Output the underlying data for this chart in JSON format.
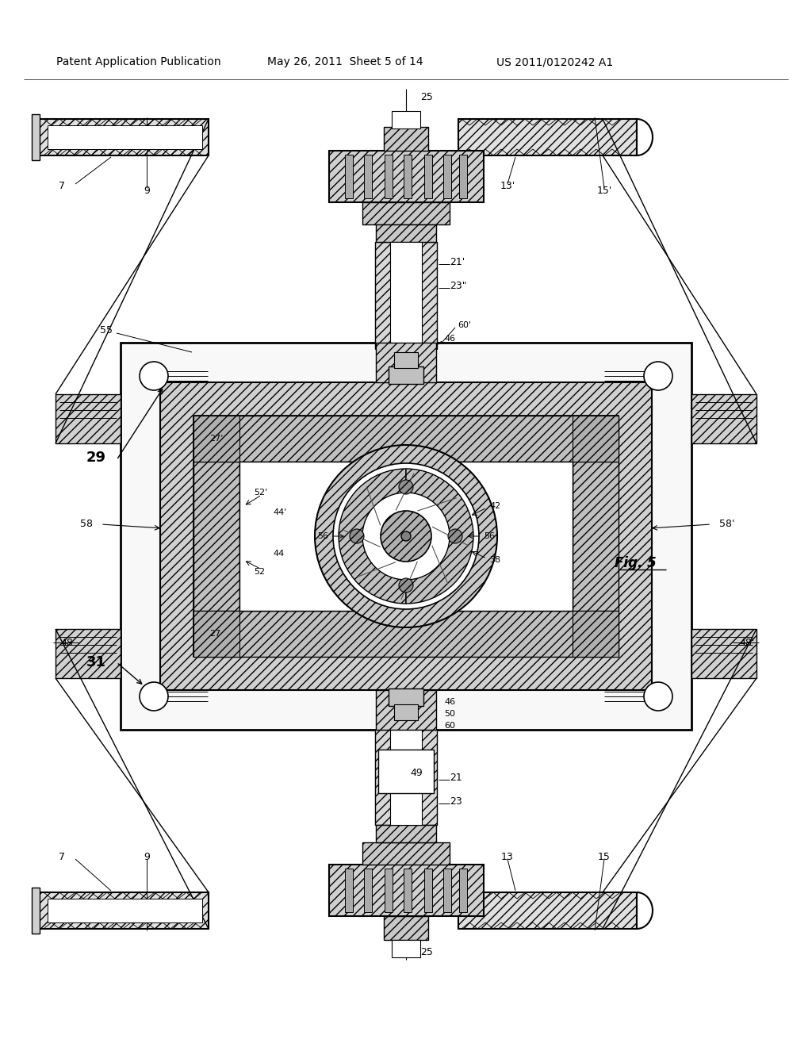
{
  "background": "#ffffff",
  "header_left": "Patent Application Publication",
  "header_mid": "May 26, 2011  Sheet 5 of 14",
  "header_right": "US 2011/0120242 A1",
  "fig_label": "Fig. 5",
  "labels": {
    "25_top": "25",
    "25_bot": "25",
    "7_tl": "7",
    "9_tl": "9",
    "13_tr": "13'",
    "15_tr": "15'",
    "7_bl": "7",
    "9_bl": "9",
    "13_br": "13",
    "15_br": "15",
    "21_top": "21'",
    "23_top": "23\"",
    "21_bot": "21",
    "23_bot": "23",
    "29": "29",
    "31": "31",
    "55": "55",
    "58": "58",
    "58p": "58'",
    "48l": "48",
    "48r": "48'",
    "27_t": "27'",
    "27_b": "27",
    "52p": "52'",
    "52": "52",
    "44p": "44'",
    "44": "44",
    "56l": "56",
    "56r": "56",
    "42": "42",
    "38": "38",
    "46t": "46",
    "60t": "60'",
    "46m": "46",
    "50": "50",
    "60b": "60",
    "49": "49"
  }
}
